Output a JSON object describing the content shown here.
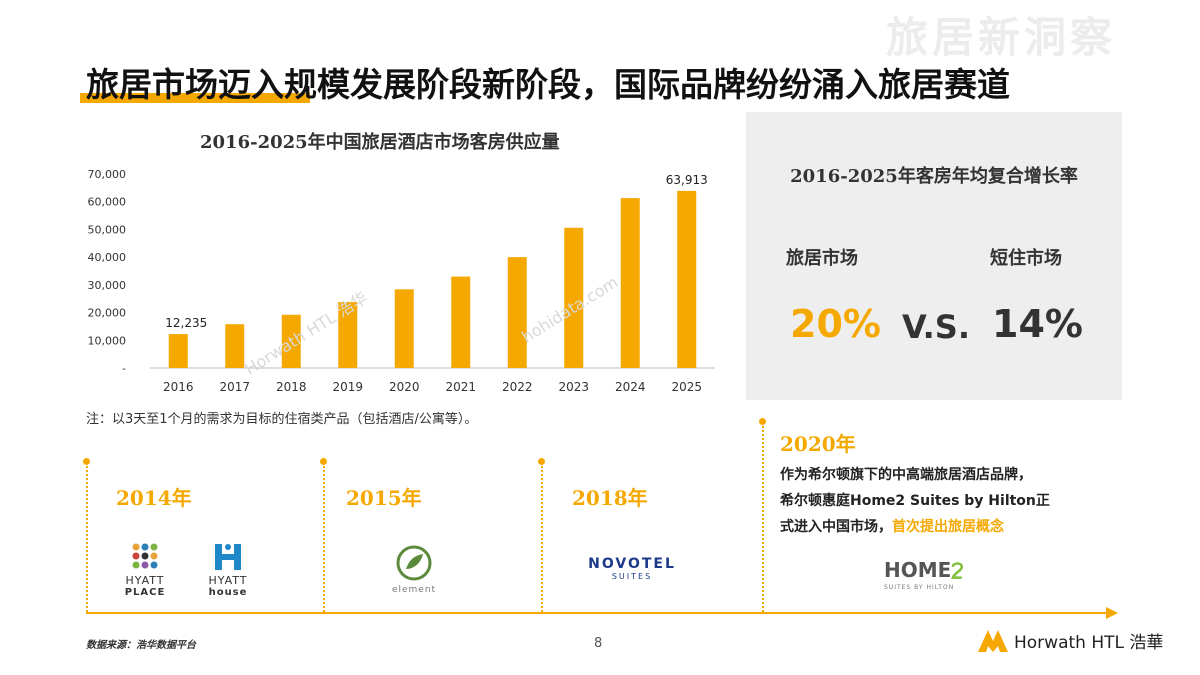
{
  "watermark": "旅居新洞察",
  "page_title": "旅居市场迈入规模发展阶段新阶段，国际品牌纷纷涌入旅居赛道",
  "chart_note": "注：以3天至1个月的需求为目标的住宿类产品（包括酒店/公寓等）。",
  "diag_watermarks": [
    "Horwath HTL 浩华",
    "hohidata.com"
  ],
  "chart_data": {
    "type": "bar",
    "title": "2016-2025年中国旅居酒店市场客房供应量",
    "categories": [
      "2016",
      "2017",
      "2018",
      "2019",
      "2020",
      "2021",
      "2022",
      "2023",
      "2024",
      "2025"
    ],
    "values": [
      12235,
      15800,
      19200,
      23800,
      28400,
      33000,
      40000,
      50600,
      61300,
      63913
    ],
    "data_labels": {
      "2016": "12,235",
      "2025": "63,913"
    },
    "ylim": [
      0,
      70000
    ],
    "yticks": [
      "-",
      "10,000",
      "20,000",
      "30,000",
      "40,000",
      "50,000",
      "60,000",
      "70,000"
    ],
    "bar_color": "#f5a800",
    "grid": false
  },
  "cagr": {
    "title": "2016-2025年客房年均复合增长率",
    "left_label": "旅居市场",
    "left_value": "20%",
    "vs": "V.S.",
    "right_label": "短住市场",
    "right_value": "14%",
    "accent": "#f5a800"
  },
  "timeline": {
    "y2014": "2014年",
    "y2015": "2015年",
    "y2018": "2018年",
    "y2020": "2020年",
    "logos": {
      "hyatt_place": [
        "HYATT",
        "PLACE"
      ],
      "hyatt_house": [
        "HYATT",
        "house"
      ],
      "element": "element",
      "novotel": [
        "NOVOTEL",
        "SUITES"
      ],
      "home2": [
        "HOME",
        "SUITES BY HILTON"
      ]
    },
    "desc_lines": [
      "作为希尔顿旗下的中高端旅居酒店品牌，",
      "希尔顿惠庭Home2 Suites by Hilton正",
      "式进入中国市场，"
    ],
    "desc_highlight": "首次提出旅居概念"
  },
  "footer": {
    "source": "数据来源：浩华数据平台",
    "page_number": "8",
    "brand": "Horwath HTL 浩華"
  }
}
